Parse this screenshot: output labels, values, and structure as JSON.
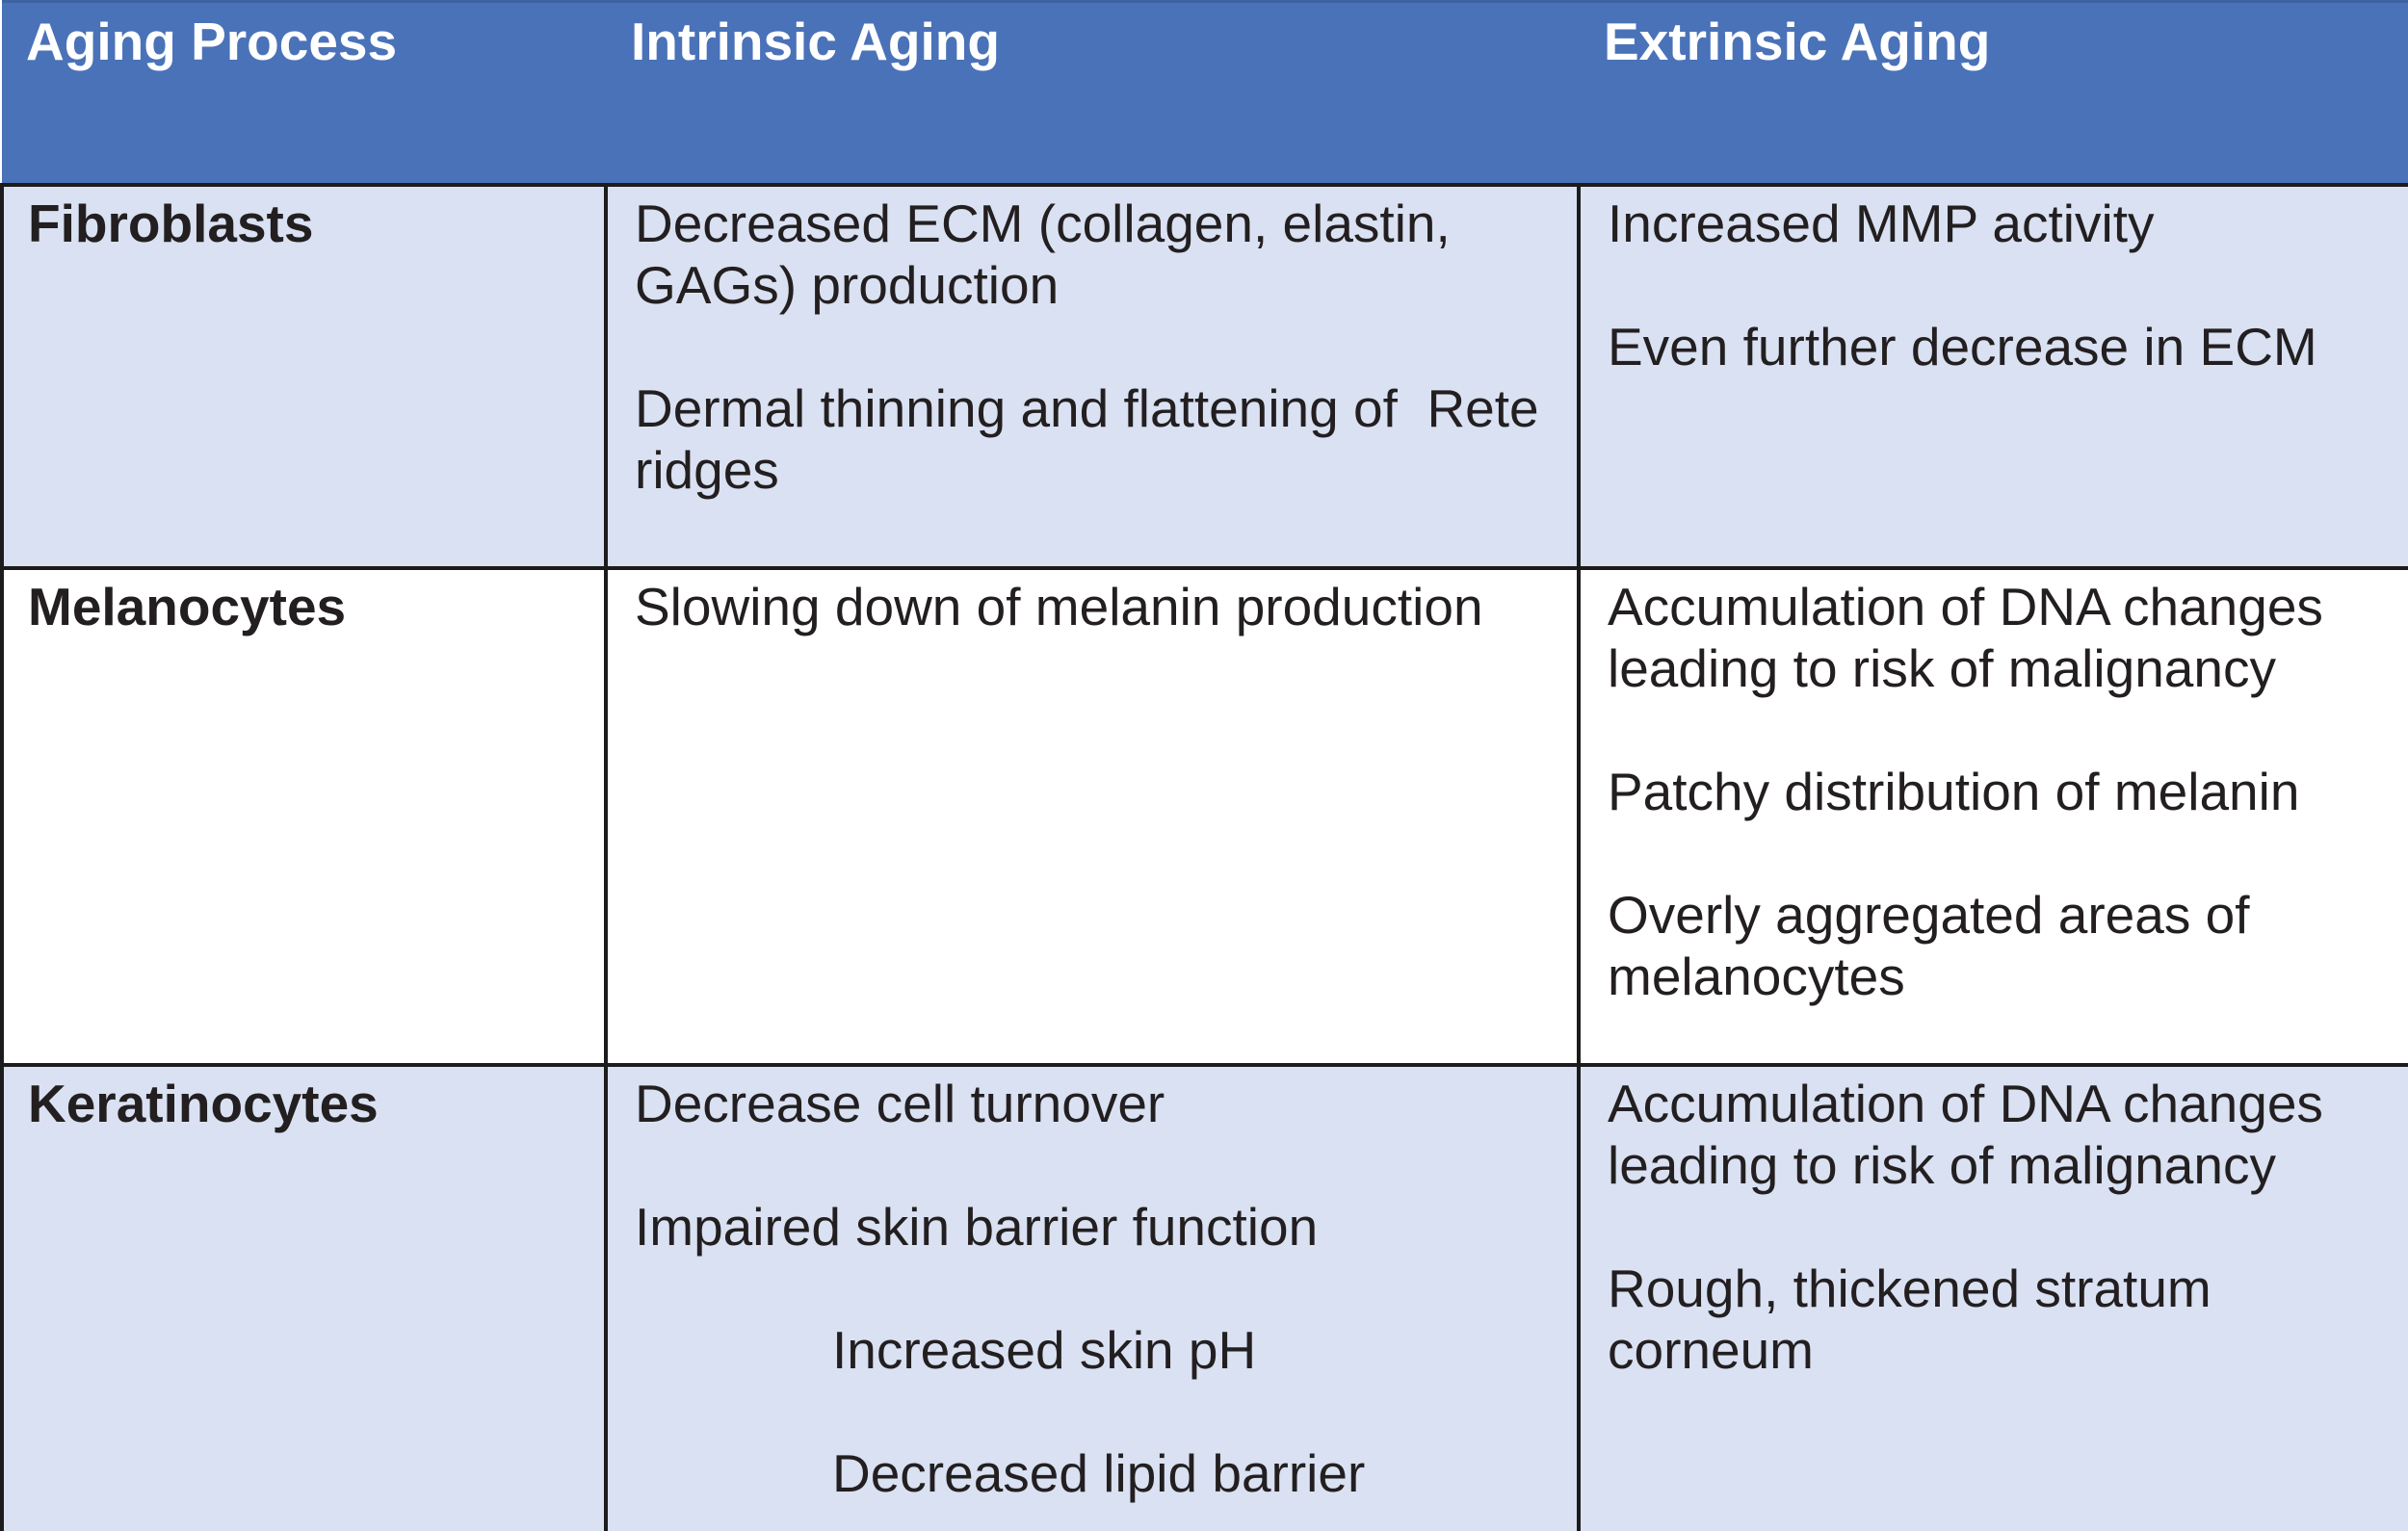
{
  "table": {
    "colors": {
      "header_bg": "#4a72b8",
      "header_top_edge": "#3d63a3",
      "header_text": "#ffffff",
      "banded_row_bg": "#d9e1f2",
      "plain_row_bg": "#ffffff",
      "grid_border": "#1c1c1c",
      "body_text": "#231f20"
    },
    "header": {
      "columns": [
        {
          "label": "Aging Process"
        },
        {
          "label": "Intrinsic Aging"
        },
        {
          "label": "Extrinsic Aging"
        }
      ]
    },
    "rows": [
      {
        "label": "Fibroblasts",
        "bg": "#d9e1f2",
        "intrinsic": [
          {
            "text": "Decreased ECM (collagen, elastin, GAGs) production"
          },
          {
            "text": "Dermal thinning and flattening of  Rete ridges"
          }
        ],
        "extrinsic": [
          {
            "text": "Increased MMP activity"
          },
          {
            "text": "Even further decrease in ECM"
          }
        ]
      },
      {
        "label": "Melanocytes",
        "bg": "#ffffff",
        "intrinsic": [
          {
            "text": "Slowing down of melanin production"
          }
        ],
        "extrinsic": [
          {
            "text": "Accumulation of DNA changes leading to risk of malignancy"
          },
          {
            "text": "Patchy distribution of melanin"
          },
          {
            "text": "Overly aggregated areas of melanocytes"
          }
        ]
      },
      {
        "label": "Keratinocytes",
        "bg": "#d9e1f2",
        "intrinsic": [
          {
            "text": "Decrease cell turnover"
          },
          {
            "text": "Impaired skin barrier function"
          },
          {
            "text": "Increased skin pH",
            "indent": true
          },
          {
            "text": "Decreased lipid barrier",
            "indent": true
          }
        ],
        "extrinsic": [
          {
            "text": "Accumulation of DNA changes leading to risk of malignancy"
          },
          {
            "text": "Rough, thickened stratum corneum"
          }
        ]
      }
    ]
  }
}
